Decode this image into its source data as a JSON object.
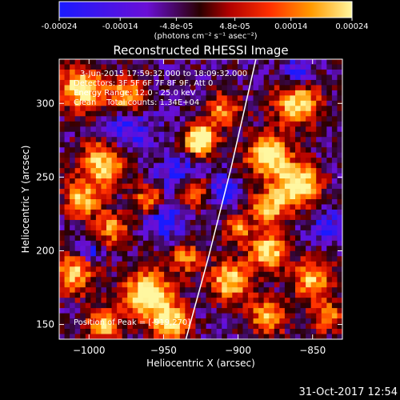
{
  "colorbar": {
    "tick_labels": [
      "-0.00024",
      "-0.00014",
      "-4.8e-05",
      "4.8e-05",
      "0.00014",
      "0.00024"
    ],
    "tick_values": [
      -0.00024,
      -0.00014,
      -4.8e-05,
      4.8e-05,
      0.00014,
      0.00024
    ],
    "min": -0.00024,
    "max": 0.00024,
    "unit_label": "(photons cm⁻² s⁻¹ asec⁻²)",
    "colors": [
      "#1a1aff",
      "#6a0fd6",
      "#2a0000",
      "#b00000",
      "#ff3000",
      "#ff9a00",
      "#fff7a0"
    ]
  },
  "title": "Reconstructed RHESSI Image",
  "annotations": {
    "time_range": "3-Jun-2015 17:59:32.000 to 18:09:32.000",
    "detectors": "Detectors: 3F 5F 6F 7F 8F 9F, Att 0",
    "energy_range": "Energy Range: 12.0 - 25.0 keV",
    "method": "Clean    Total counts: 1.34E+04",
    "peak": "Position of Peak = [-919,270]"
  },
  "axes": {
    "xlabel": "Heliocentric X (arcsec)",
    "ylabel": "Heliocentric Y (arcsec)",
    "xlim": [
      -1020,
      -830
    ],
    "ylim": [
      140,
      330
    ],
    "xticks": [
      -1000,
      -950,
      -900,
      -850
    ],
    "yticks": [
      150,
      200,
      250,
      300
    ],
    "xtick_labels": [
      "−1000",
      "−950",
      "−900",
      "−850"
    ],
    "ytick_labels": [
      "150",
      "200",
      "250",
      "300"
    ]
  },
  "limb_points": [
    [
      -935,
      140
    ],
    [
      -920,
      195
    ],
    [
      -905,
      255
    ],
    [
      -888,
      330
    ]
  ],
  "peak": {
    "x": -919,
    "y": 270
  },
  "timestamp": "31-Oct-2017 12:54"
}
